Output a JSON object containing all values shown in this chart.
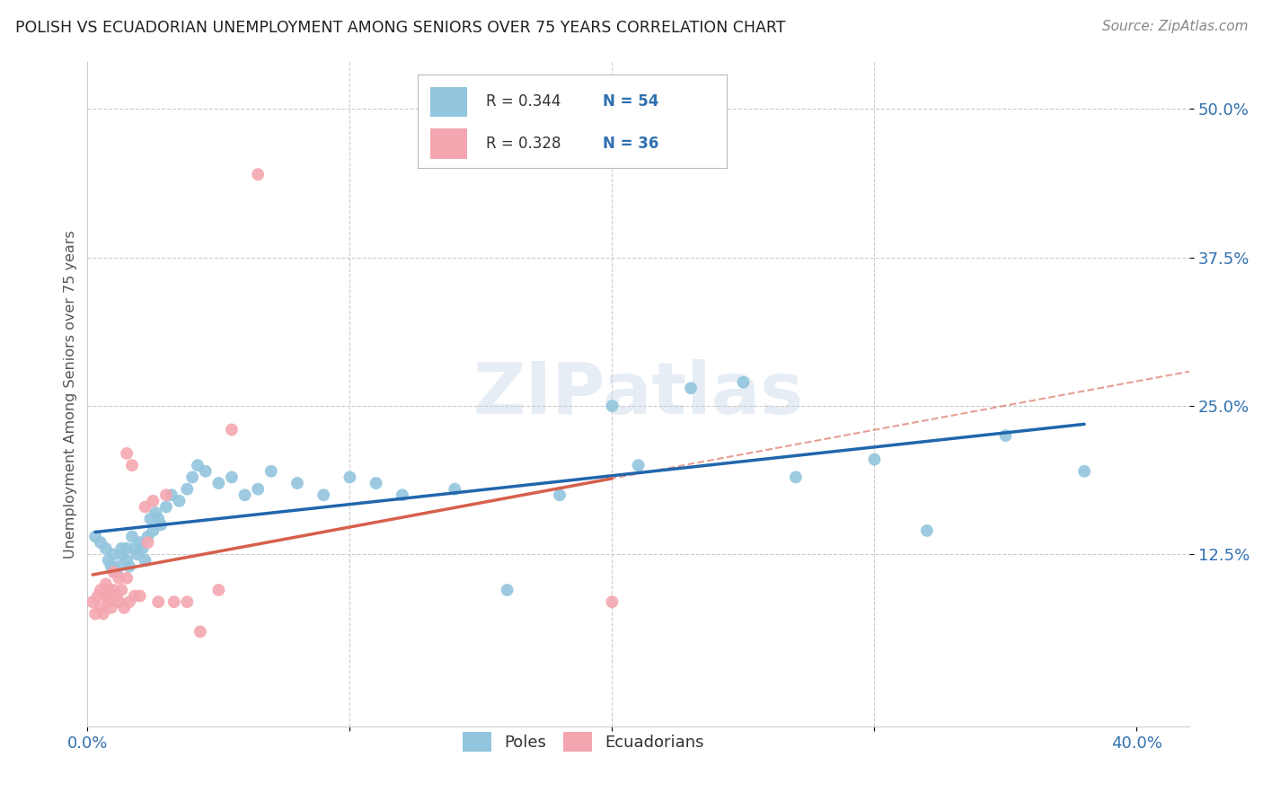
{
  "title": "POLISH VS ECUADORIAN UNEMPLOYMENT AMONG SENIORS OVER 75 YEARS CORRELATION CHART",
  "source": "Source: ZipAtlas.com",
  "ylabel": "Unemployment Among Seniors over 75 years",
  "xlim": [
    0.0,
    0.42
  ],
  "ylim": [
    -0.02,
    0.54
  ],
  "ytick_positions": [
    0.125,
    0.25,
    0.375,
    0.5
  ],
  "ytick_labels": [
    "12.5%",
    "25.0%",
    "37.5%",
    "50.0%"
  ],
  "xtick_positions": [
    0.0,
    0.1,
    0.2,
    0.3,
    0.4
  ],
  "xtick_labels": [
    "0.0%",
    "",
    "",
    "",
    "40.0%"
  ],
  "legend_blue_R": "R = 0.344",
  "legend_blue_N": "N = 54",
  "legend_pink_R": "R = 0.328",
  "legend_pink_N": "N = 36",
  "legend_labels": [
    "Poles",
    "Ecuadorians"
  ],
  "blue_scatter_color": "#92c5de",
  "pink_scatter_color": "#f4a6b0",
  "blue_line_color": "#2166ac",
  "pink_line_color": "#d6604d",
  "pink_dash_color": "#d6604d",
  "grid_color": "#cccccc",
  "watermark": "ZIPatlas",
  "poles_x": [
    0.003,
    0.005,
    0.007,
    0.008,
    0.009,
    0.01,
    0.011,
    0.012,
    0.013,
    0.013,
    0.015,
    0.015,
    0.016,
    0.017,
    0.018,
    0.019,
    0.02,
    0.021,
    0.022,
    0.023,
    0.024,
    0.025,
    0.026,
    0.027,
    0.028,
    0.03,
    0.032,
    0.035,
    0.038,
    0.04,
    0.042,
    0.045,
    0.05,
    0.055,
    0.06,
    0.065,
    0.07,
    0.08,
    0.09,
    0.1,
    0.11,
    0.12,
    0.14,
    0.16,
    0.18,
    0.2,
    0.21,
    0.23,
    0.25,
    0.27,
    0.3,
    0.32,
    0.35,
    0.38
  ],
  "poles_y": [
    0.14,
    0.135,
    0.13,
    0.12,
    0.115,
    0.125,
    0.11,
    0.115,
    0.125,
    0.13,
    0.12,
    0.13,
    0.115,
    0.14,
    0.13,
    0.125,
    0.135,
    0.13,
    0.12,
    0.14,
    0.155,
    0.145,
    0.16,
    0.155,
    0.15,
    0.165,
    0.175,
    0.17,
    0.18,
    0.19,
    0.2,
    0.195,
    0.185,
    0.19,
    0.175,
    0.18,
    0.195,
    0.185,
    0.175,
    0.19,
    0.185,
    0.175,
    0.18,
    0.095,
    0.175,
    0.25,
    0.2,
    0.265,
    0.27,
    0.19,
    0.205,
    0.145,
    0.225,
    0.195
  ],
  "ecuadorians_x": [
    0.002,
    0.003,
    0.004,
    0.005,
    0.005,
    0.006,
    0.007,
    0.007,
    0.008,
    0.008,
    0.009,
    0.01,
    0.01,
    0.011,
    0.012,
    0.012,
    0.013,
    0.014,
    0.015,
    0.015,
    0.016,
    0.017,
    0.018,
    0.02,
    0.022,
    0.023,
    0.025,
    0.027,
    0.03,
    0.033,
    0.038,
    0.043,
    0.05,
    0.055,
    0.065,
    0.2
  ],
  "ecuadorians_y": [
    0.085,
    0.075,
    0.09,
    0.095,
    0.08,
    0.075,
    0.1,
    0.09,
    0.085,
    0.095,
    0.08,
    0.11,
    0.095,
    0.09,
    0.085,
    0.105,
    0.095,
    0.08,
    0.21,
    0.105,
    0.085,
    0.2,
    0.09,
    0.09,
    0.165,
    0.135,
    0.17,
    0.085,
    0.175,
    0.085,
    0.085,
    0.06,
    0.095,
    0.23,
    0.445,
    0.085
  ]
}
